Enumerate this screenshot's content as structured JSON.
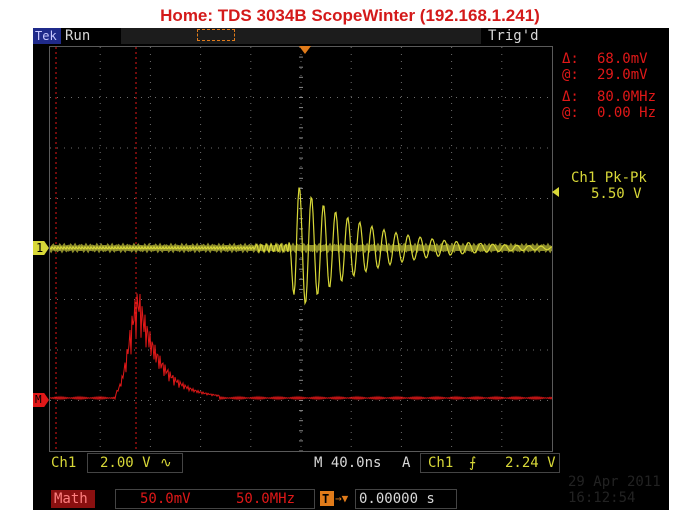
{
  "page_title": "Home:  TDS 3034B  ScopeWinter  (192.168.1.241)",
  "status": {
    "brand": "Tek",
    "run_state": "Run",
    "trigger_state": "Trig'd"
  },
  "cursors": {
    "delta_v_symbol": "Δ:",
    "delta_v": "68.0mV",
    "at_v_symbol": "@:",
    "at_v": "29.0mV",
    "delta_f_symbol": "Δ:",
    "delta_f": "80.0MHz",
    "at_f_symbol": "@:",
    "at_f": "0.00 Hz"
  },
  "measurement": {
    "label": "Ch1 Pk-Pk",
    "value": "5.50 V"
  },
  "markers": {
    "ch1": "1",
    "math": "M"
  },
  "channel_info": {
    "ch_label": "Ch1",
    "volts_div": "2.00 V",
    "coupling_icon": "∿",
    "timebase": "M 40.0ns",
    "trigger_mode": "A",
    "trigger_source": "Ch1",
    "trigger_slope_icon": "rising-edge-icon",
    "trigger_slope_glyph": "⨍",
    "trigger_level": "2.24 V"
  },
  "math_info": {
    "label": "Math",
    "scale": "50.0mV",
    "span": "50.0MHz",
    "trigger_position_icon": "T",
    "trigger_arrow": "→▼",
    "offset": "0.00000 s"
  },
  "datetime": {
    "date": "29 Apr 2011",
    "time": "16:12:54"
  },
  "colors": {
    "ch1": "#d8d838",
    "math": "#e01818",
    "cursor": "#e01818",
    "accent": "#e07b1a",
    "grid": "#6e6e6e"
  }
}
